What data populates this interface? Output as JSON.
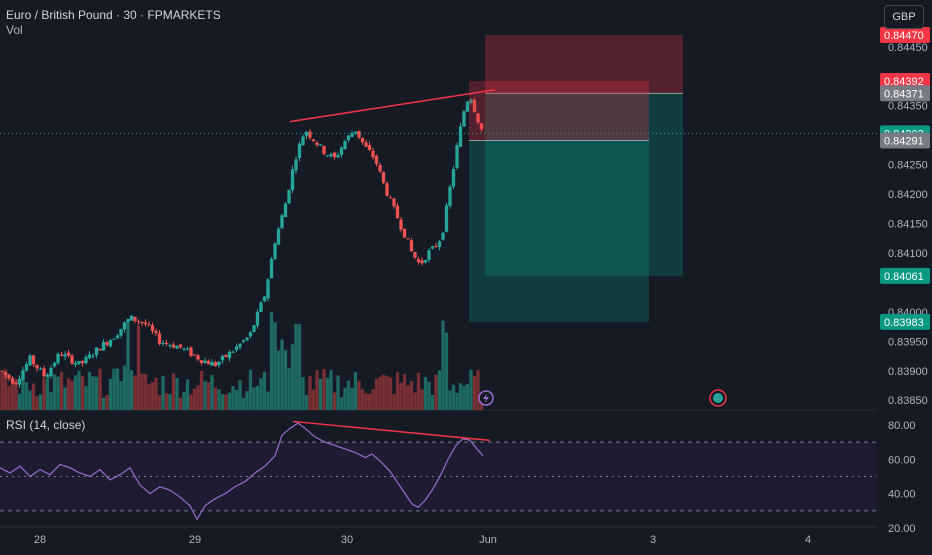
{
  "header": {
    "title": "Euro / British Pound · 30 · FPMARKETS",
    "volume_label": "Vol",
    "currency_button": "GBP"
  },
  "rsi": {
    "label": "RSI (14, close)",
    "ticks": [
      "80.00",
      "60.00",
      "40.00",
      "20.00"
    ]
  },
  "price_axis": {
    "ticks": [
      "0.84450",
      "0.84350",
      "0.84250",
      "0.84200",
      "0.84150",
      "0.84100",
      "0.84000",
      "0.83950",
      "0.83900",
      "0.83850"
    ],
    "tags": [
      {
        "text": "0.84470",
        "bg": "#f23645",
        "price": 0.8447
      },
      {
        "text": "0.84392",
        "bg": "#f23645",
        "price": 0.84392
      },
      {
        "text": "0.84371",
        "bg": "#787b86",
        "price": 0.84371
      },
      {
        "text": "0.84303",
        "bg": "#089981",
        "price": 0.84303
      },
      {
        "text": "0.84291",
        "bg": "#787b86",
        "price": 0.84291
      },
      {
        "text": "0.84061",
        "bg": "#089981",
        "price": 0.84061
      },
      {
        "text": "0.83983",
        "bg": "#089981",
        "price": 0.83983
      }
    ]
  },
  "time_axis": {
    "labels": [
      "28",
      "29",
      "30",
      "Jun",
      "3",
      "4"
    ]
  },
  "colors": {
    "background": "#161a25",
    "up": "#26a69a",
    "down": "#ef5350",
    "trendline": "#f23645",
    "rsi_line": "#9a6bd3",
    "rsi_band": "#1e1b33"
  },
  "chart_data": {
    "type": "candlestick",
    "symbol": "Euro / British Pound",
    "interval": "30",
    "exchange": "FPMARKETS",
    "currency": "GBP",
    "price_range": [
      0.8383,
      0.8447
    ],
    "last_price": 0.84303,
    "price_path": [
      [
        0,
        0.839
      ],
      [
        15,
        0.8388
      ],
      [
        30,
        0.8392
      ],
      [
        45,
        0.8389
      ],
      [
        60,
        0.8393
      ],
      [
        80,
        0.8391
      ],
      [
        100,
        0.8394
      ],
      [
        115,
        0.8396
      ],
      [
        130,
        0.8399
      ],
      [
        145,
        0.8398
      ],
      [
        160,
        0.8395
      ],
      [
        180,
        0.8394
      ],
      [
        200,
        0.8392
      ],
      [
        215,
        0.8391
      ],
      [
        230,
        0.8393
      ],
      [
        250,
        0.8396
      ],
      [
        265,
        0.8403
      ],
      [
        275,
        0.8412
      ],
      [
        285,
        0.8418
      ],
      [
        295,
        0.8426
      ],
      [
        305,
        0.8431
      ],
      [
        315,
        0.8429
      ],
      [
        325,
        0.8427
      ],
      [
        335,
        0.8426
      ],
      [
        345,
        0.8429
      ],
      [
        355,
        0.8431
      ],
      [
        365,
        0.8428
      ],
      [
        375,
        0.8426
      ],
      [
        385,
        0.8421
      ],
      [
        395,
        0.8417
      ],
      [
        405,
        0.8413
      ],
      [
        412,
        0.841
      ],
      [
        420,
        0.8408
      ],
      [
        428,
        0.841
      ],
      [
        435,
        0.8411
      ],
      [
        442,
        0.8413
      ],
      [
        450,
        0.8421
      ],
      [
        458,
        0.8429
      ],
      [
        465,
        0.8435
      ],
      [
        470,
        0.8437
      ],
      [
        477,
        0.8433
      ],
      [
        483,
        0.84303
      ]
    ],
    "rsi_path": [
      [
        0,
        55
      ],
      [
        10,
        52
      ],
      [
        20,
        56
      ],
      [
        30,
        50
      ],
      [
        40,
        54
      ],
      [
        50,
        51
      ],
      [
        60,
        57
      ],
      [
        70,
        55
      ],
      [
        80,
        52
      ],
      [
        90,
        50
      ],
      [
        100,
        54
      ],
      [
        110,
        48
      ],
      [
        120,
        51
      ],
      [
        130,
        55
      ],
      [
        140,
        45
      ],
      [
        150,
        40
      ],
      [
        160,
        44
      ],
      [
        170,
        42
      ],
      [
        180,
        38
      ],
      [
        190,
        33
      ],
      [
        197,
        25
      ],
      [
        205,
        33
      ],
      [
        215,
        37
      ],
      [
        225,
        40
      ],
      [
        235,
        44
      ],
      [
        245,
        47
      ],
      [
        255,
        52
      ],
      [
        265,
        56
      ],
      [
        275,
        62
      ],
      [
        282,
        74
      ],
      [
        290,
        78
      ],
      [
        298,
        81
      ],
      [
        305,
        78
      ],
      [
        315,
        73
      ],
      [
        325,
        70
      ],
      [
        335,
        68
      ],
      [
        345,
        66
      ],
      [
        355,
        64
      ],
      [
        365,
        61
      ],
      [
        372,
        63
      ],
      [
        380,
        59
      ],
      [
        390,
        53
      ],
      [
        398,
        46
      ],
      [
        405,
        40
      ],
      [
        412,
        34
      ],
      [
        418,
        32
      ],
      [
        425,
        36
      ],
      [
        432,
        42
      ],
      [
        440,
        50
      ],
      [
        448,
        60
      ],
      [
        456,
        68
      ],
      [
        463,
        72
      ],
      [
        470,
        71
      ],
      [
        477,
        66
      ],
      [
        483,
        62
      ]
    ],
    "rsi_levels": [
      70,
      50,
      30
    ],
    "rsi_range": [
      20,
      84
    ],
    "trendlines": [
      {
        "pane": "price",
        "from": [
          290,
          0.84323
        ],
        "to": [
          495,
          0.84377
        ]
      },
      {
        "pane": "rsi",
        "from": [
          293,
          82
        ],
        "to": [
          490,
          71
        ]
      }
    ],
    "positions": [
      {
        "side": "short",
        "entry": 0.84371,
        "stop": 0.8447,
        "target": 0.84061,
        "x_from": 485,
        "x_to": 683
      },
      {
        "side": "short",
        "entry": 0.84291,
        "stop": 0.84392,
        "target": 0.83983,
        "x_from": 469,
        "x_to": 649
      }
    ],
    "time_labels": [
      {
        "label": "28",
        "x": 40
      },
      {
        "label": "29",
        "x": 195
      },
      {
        "label": "30",
        "x": 347
      },
      {
        "label": "Jun",
        "x": 488
      },
      {
        "label": "3",
        "x": 653
      },
      {
        "label": "4",
        "x": 808
      }
    ]
  }
}
